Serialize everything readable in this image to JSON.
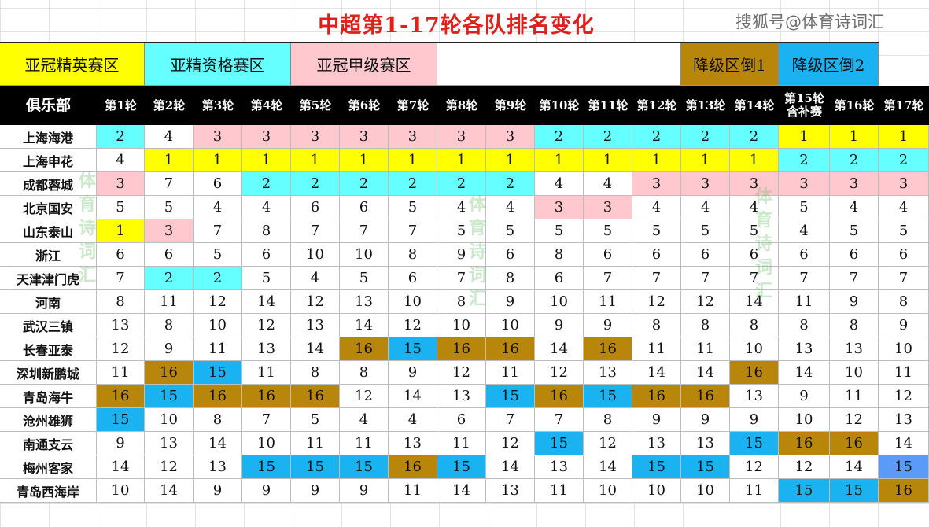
{
  "title": "中超第1-17轮各队排名变化",
  "brand": "搜狐号@体育诗词汇",
  "watermark": "体育诗词汇",
  "zones": [
    {
      "label": "亚冠精英赛区",
      "color": "#ffff00"
    },
    {
      "label": "亚精资格赛区",
      "color": "#66ffff"
    },
    {
      "label": "亚冠甲级赛区",
      "color": "#ffc7ce"
    },
    {
      "label": "",
      "color": "#ffffff"
    },
    {
      "label": "降级区倒1",
      "color": "#b8860b"
    },
    {
      "label": "降级区倒2",
      "color": "#1ab2f0"
    }
  ],
  "colors": {
    "Y": "#ffff00",
    "C": "#66ffff",
    "P": "#ffc7ce",
    "G": "#b8860b",
    "B": "#1ab2f0",
    "L": "#5b9bf8",
    "W": "#ffffff"
  },
  "chart_data": {
    "type": "table",
    "title": "中超第1-17轮各队排名变化",
    "header_team": "俱乐部",
    "rounds": [
      "第1轮",
      "第2轮",
      "第3轮",
      "第4轮",
      "第5轮",
      "第6轮",
      "第7轮",
      "第8轮",
      "第9轮",
      "第10轮",
      "第11轮",
      "第12轮",
      "第13轮",
      "第14轮",
      "第15轮\n含补赛",
      "第16轮",
      "第17轮"
    ],
    "teams": [
      {
        "name": "上海海港",
        "ranks": [
          2,
          4,
          3,
          3,
          3,
          3,
          3,
          3,
          3,
          2,
          2,
          2,
          2,
          2,
          1,
          1,
          1
        ],
        "fills": "CWPPPPPPPCCCCCYYY"
      },
      {
        "name": "上海申花",
        "ranks": [
          4,
          1,
          1,
          1,
          1,
          1,
          1,
          1,
          1,
          1,
          1,
          1,
          1,
          1,
          2,
          2,
          2
        ],
        "fills": "WYYYYYYYYYYYYYCCC"
      },
      {
        "name": "成都蓉城",
        "ranks": [
          3,
          7,
          6,
          2,
          2,
          2,
          2,
          2,
          2,
          4,
          4,
          3,
          3,
          3,
          3,
          3,
          3
        ],
        "fills": "PWWCCCCCCWWPPPPPP"
      },
      {
        "name": "北京国安",
        "ranks": [
          5,
          5,
          4,
          4,
          6,
          6,
          5,
          4,
          4,
          3,
          3,
          4,
          4,
          4,
          5,
          4,
          4
        ],
        "fills": "WWWWWWWWWPPWWWWWW"
      },
      {
        "name": "山东泰山",
        "ranks": [
          1,
          3,
          7,
          8,
          7,
          7,
          7,
          5,
          5,
          5,
          5,
          5,
          5,
          5,
          4,
          5,
          5
        ],
        "fills": "YPWWWWWWWWWWWWWWW"
      },
      {
        "name": "浙江",
        "ranks": [
          6,
          6,
          5,
          6,
          10,
          10,
          8,
          9,
          6,
          8,
          6,
          6,
          6,
          6,
          6,
          6,
          6
        ],
        "fills": "WWWWWWWWWWWWWWWWW"
      },
      {
        "name": "天津津门虎",
        "ranks": [
          7,
          2,
          2,
          5,
          4,
          5,
          6,
          7,
          8,
          6,
          7,
          7,
          7,
          7,
          7,
          7,
          7
        ],
        "fills": "WCCWWWWWWWWWWWWWW"
      },
      {
        "name": "河南",
        "ranks": [
          8,
          11,
          12,
          14,
          12,
          13,
          10,
          8,
          9,
          10,
          11,
          12,
          12,
          14,
          11,
          9,
          8
        ],
        "fills": "WWWWWWWWWWWWWWWWW"
      },
      {
        "name": "武汉三镇",
        "ranks": [
          13,
          8,
          10,
          12,
          13,
          14,
          12,
          10,
          10,
          9,
          9,
          8,
          8,
          8,
          8,
          8,
          9
        ],
        "fills": "WWWWWWWWWWWWWWWWW"
      },
      {
        "name": "长春亚泰",
        "ranks": [
          12,
          9,
          11,
          13,
          14,
          16,
          15,
          16,
          16,
          14,
          16,
          11,
          11,
          10,
          13,
          13,
          10
        ],
        "fills": "WWWWWGBGGWGWWWWWW"
      },
      {
        "name": "深圳新鹏城",
        "ranks": [
          11,
          16,
          15,
          11,
          8,
          8,
          9,
          12,
          11,
          12,
          13,
          14,
          14,
          16,
          14,
          10,
          11
        ],
        "fills": "WGBWWWWWWWWWWGWWW"
      },
      {
        "name": "青岛海牛",
        "ranks": [
          16,
          15,
          16,
          16,
          16,
          12,
          14,
          13,
          15,
          16,
          15,
          16,
          16,
          13,
          9,
          11,
          12
        ],
        "fills": "GBGGGWWWBGBGGWWWW"
      },
      {
        "name": "沧州雄狮",
        "ranks": [
          15,
          10,
          8,
          7,
          5,
          4,
          4,
          6,
          7,
          7,
          8,
          9,
          9,
          9,
          10,
          12,
          13
        ],
        "fills": "BWWWWWWWWWWWWWWWW"
      },
      {
        "name": "南通支云",
        "ranks": [
          9,
          13,
          14,
          10,
          11,
          11,
          13,
          11,
          12,
          15,
          12,
          13,
          13,
          15,
          16,
          16,
          14
        ],
        "fills": "WWWWWWWWWBWWWBGGW"
      },
      {
        "name": "梅州客家",
        "ranks": [
          14,
          12,
          13,
          15,
          15,
          15,
          16,
          15,
          14,
          13,
          14,
          15,
          15,
          12,
          12,
          14,
          15
        ],
        "fills": "WWWBBBGBWWWBBWWWL"
      },
      {
        "name": "青岛西海岸",
        "ranks": [
          10,
          14,
          9,
          9,
          9,
          9,
          11,
          14,
          13,
          11,
          10,
          10,
          10,
          11,
          15,
          15,
          16
        ],
        "fills": "WWWWWWWWWWWWWWBBG"
      }
    ]
  }
}
